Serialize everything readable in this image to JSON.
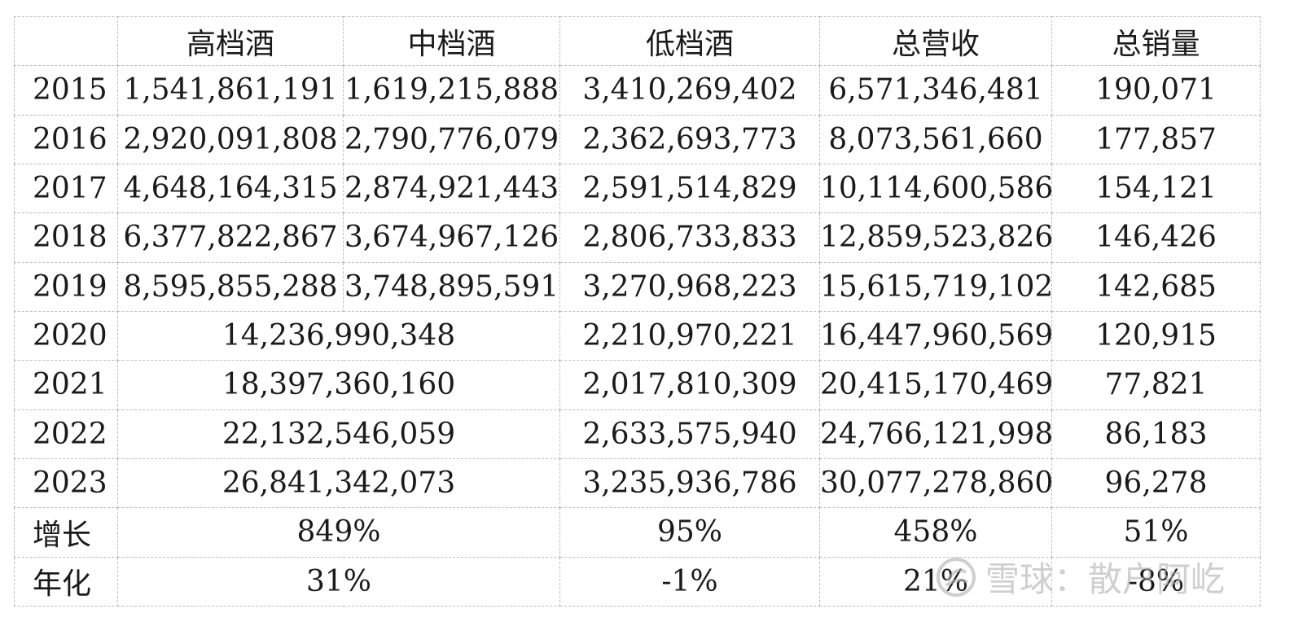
{
  "table": {
    "headers": [
      "",
      "高档酒",
      "中档酒",
      "低档酒",
      "总营收",
      "总销量"
    ],
    "rows": [
      [
        "2015",
        "1,541,861,191",
        "1,619,215,888",
        "3,410,269,402",
        "6,571,346,481",
        "190,071"
      ],
      [
        "2016",
        "2,920,091,808",
        "2,790,776,079",
        "2,362,693,773",
        "8,073,561,660",
        "177,857"
      ],
      [
        "2017",
        "4,648,164,315",
        "2,874,921,443",
        "2,591,514,829",
        "10,114,600,586",
        "154,121"
      ],
      [
        "2018",
        "6,377,822,867",
        "3,674,967,126",
        "2,806,733,833",
        "12,859,523,826",
        "146,426"
      ],
      [
        "2019",
        "8,595,855,288",
        "3,748,895,591",
        "3,270,968,223",
        "15,615,719,102",
        "142,685"
      ],
      [
        "2020",
        "14,236,990,348",
        "2,210,970,221",
        "16,447,960,569",
        "120,915"
      ],
      [
        "2021",
        "18,397,360,160",
        "2,017,810,309",
        "20,415,170,469",
        "77,821"
      ],
      [
        "2022",
        "22,132,546,059",
        "2,633,575,940",
        "24,766,121,998",
        "86,183"
      ],
      [
        "2023",
        "26,841,342,073",
        "3,235,936,786",
        "30,077,278,860",
        "96,278"
      ],
      [
        "增长",
        "849%",
        "95%",
        "458%",
        "51%"
      ],
      [
        "年化",
        "31%",
        "-1%",
        "21%",
        "-8%"
      ]
    ]
  },
  "watermark": {
    "text": "雪球：散户阿屹"
  }
}
